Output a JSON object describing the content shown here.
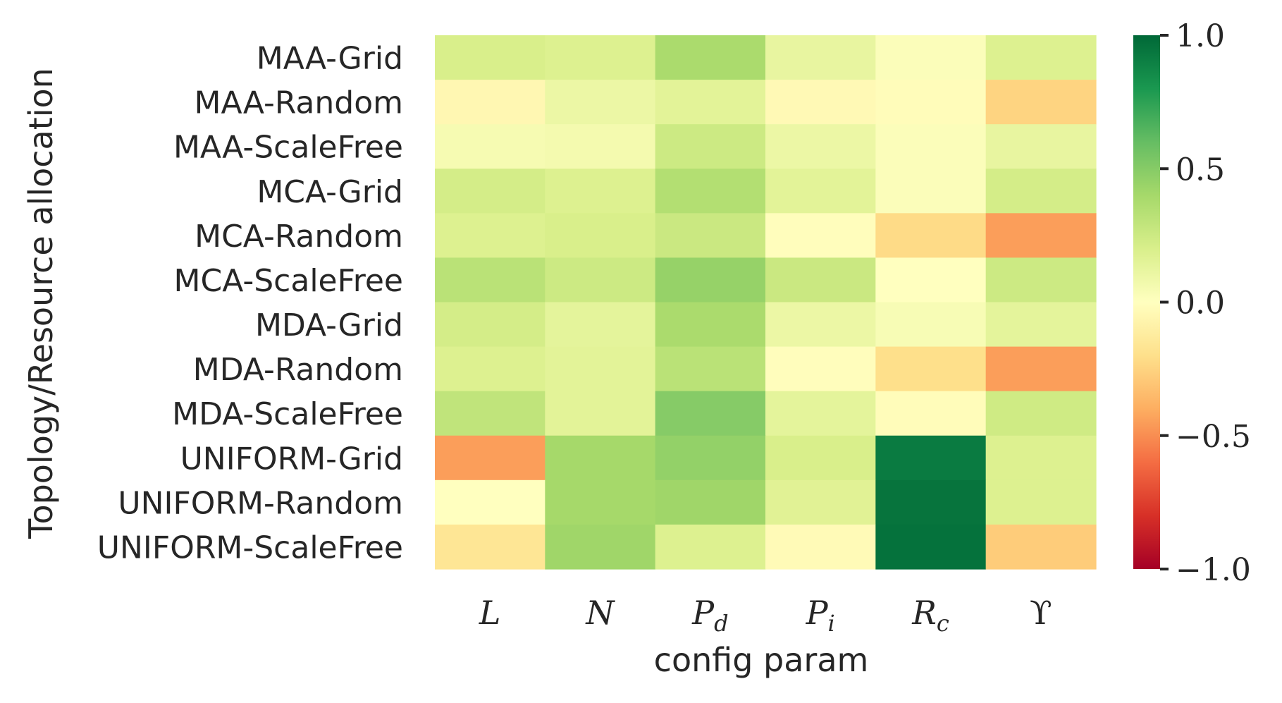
{
  "chart_data": {
    "type": "heatmap",
    "xlabel": "config param",
    "ylabel": "Topology/Resource allocation",
    "columns": [
      {
        "base": "L",
        "sub": ""
      },
      {
        "base": "N",
        "sub": ""
      },
      {
        "base": "P",
        "sub": "d"
      },
      {
        "base": "P",
        "sub": "i"
      },
      {
        "base": "R",
        "sub": "c"
      },
      {
        "base": "ϒ",
        "sub": ""
      }
    ],
    "rows": [
      "MAA-Grid",
      "MAA-Random",
      "MAA-ScaleFree",
      "MCA-Grid",
      "MCA-Random",
      "MCA-ScaleFree",
      "MDA-Grid",
      "MDA-Random",
      "MDA-ScaleFree",
      "UNIFORM-Grid",
      "UNIFORM-Random",
      "UNIFORM-ScaleFree"
    ],
    "values": [
      [
        0.2,
        0.18,
        0.38,
        0.12,
        0.02,
        0.18
      ],
      [
        -0.05,
        0.1,
        0.15,
        -0.04,
        -0.02,
        -0.25
      ],
      [
        0.05,
        0.06,
        0.25,
        0.1,
        0.02,
        0.12
      ],
      [
        0.22,
        0.18,
        0.35,
        0.15,
        0.02,
        0.22
      ],
      [
        0.18,
        0.2,
        0.26,
        -0.01,
        -0.22,
        -0.45
      ],
      [
        0.32,
        0.25,
        0.45,
        0.26,
        0.0,
        0.25
      ],
      [
        0.22,
        0.14,
        0.38,
        0.1,
        0.04,
        0.14
      ],
      [
        0.18,
        0.15,
        0.32,
        -0.01,
        -0.2,
        -0.45
      ],
      [
        0.3,
        0.15,
        0.5,
        0.14,
        -0.02,
        0.24
      ],
      [
        -0.45,
        0.4,
        0.46,
        0.2,
        0.92,
        0.18
      ],
      [
        0.0,
        0.4,
        0.42,
        0.16,
        0.95,
        0.18
      ],
      [
        -0.16,
        0.42,
        0.18,
        -0.03,
        0.96,
        -0.28
      ]
    ],
    "colorbar": {
      "vmin": -1.0,
      "vmax": 1.0,
      "ticks": [
        1.0,
        0.5,
        0.0,
        -0.5,
        -1.0
      ],
      "tick_labels": [
        "1.0",
        "0.5",
        "0.0",
        "−0.5",
        "−1.0"
      ],
      "colormap": "RdYlGn",
      "colormap_stops": [
        "#a50026",
        "#d73027",
        "#f46d43",
        "#fdae61",
        "#fee08b",
        "#ffffbf",
        "#d9ef8b",
        "#a6d96a",
        "#66bd63",
        "#1a9850",
        "#006837"
      ]
    }
  }
}
